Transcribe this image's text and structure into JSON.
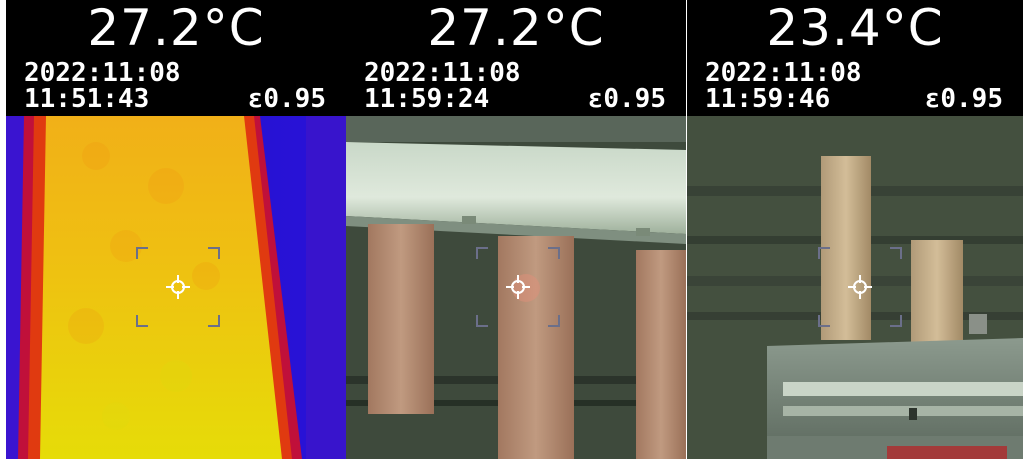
{
  "panels": [
    {
      "temperature": "27.2°C",
      "date": "2022:11:08",
      "time": "11:51:43",
      "emissivity": "ε0.95",
      "view": "thermal"
    },
    {
      "temperature": "27.2°C",
      "date": "2022:11:08",
      "time": "11:59:24",
      "emissivity": "ε0.95",
      "view": "visible"
    },
    {
      "temperature": "23.4°C",
      "date": "2022:11:08",
      "time": "11:59:46",
      "emissivity": "ε0.95",
      "view": "visible"
    }
  ],
  "icons": {
    "reticle": "crosshair-reticle-icon"
  },
  "colors": {
    "background": "#000000",
    "text": "#ffffff"
  }
}
